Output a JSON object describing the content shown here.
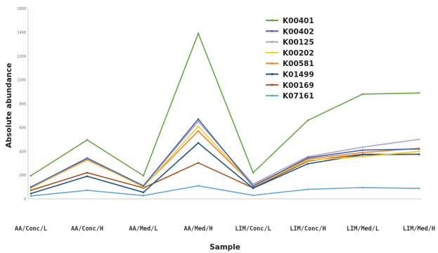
{
  "chart_data": {
    "type": "line",
    "xlabel": "Sample",
    "ylabel": "Absolute abundance",
    "categories": [
      "AA/Conc/L",
      "AA/Conc/H",
      "AA/Med/L",
      "AA/Med/H",
      "LIM/Conc/L",
      "LIM/Conc/H",
      "LIM/Med/L",
      "LIM/Med/H"
    ],
    "ylim": [
      0,
      1600
    ],
    "yticks": [
      "0",
      "200",
      "400",
      "600",
      "800",
      "1000",
      "1200",
      "1400",
      "1600"
    ],
    "grid": false,
    "legend_position": "top-right",
    "series": [
      {
        "name": "K00401",
        "color": "#66aa44",
        "values": [
          195,
          495,
          195,
          1390,
          220,
          660,
          880,
          890
        ]
      },
      {
        "name": "K00402",
        "color": "#4466bb",
        "values": [
          100,
          340,
          110,
          670,
          105,
          345,
          410,
          420
        ]
      },
      {
        "name": "K00125",
        "color": "#aaaacc",
        "values": [
          98,
          345,
          110,
          650,
          125,
          355,
          435,
          500
        ]
      },
      {
        "name": "K00202",
        "color": "#ffcc22",
        "values": [
          90,
          335,
          100,
          610,
          110,
          325,
          355,
          400
        ]
      },
      {
        "name": "K00581",
        "color": "#ee8833",
        "values": [
          92,
          328,
          105,
          570,
          115,
          335,
          390,
          425
        ]
      },
      {
        "name": "K01499",
        "color": "#225588",
        "values": [
          45,
          190,
          55,
          470,
          90,
          295,
          370,
          375
        ]
      },
      {
        "name": "K00169",
        "color": "#aa5522",
        "values": [
          72,
          220,
          92,
          303,
          92,
          318,
          375,
          375
        ]
      },
      {
        "name": "K07161",
        "color": "#66aadd",
        "values": [
          25,
          72,
          28,
          110,
          30,
          80,
          95,
          88
        ]
      }
    ]
  }
}
